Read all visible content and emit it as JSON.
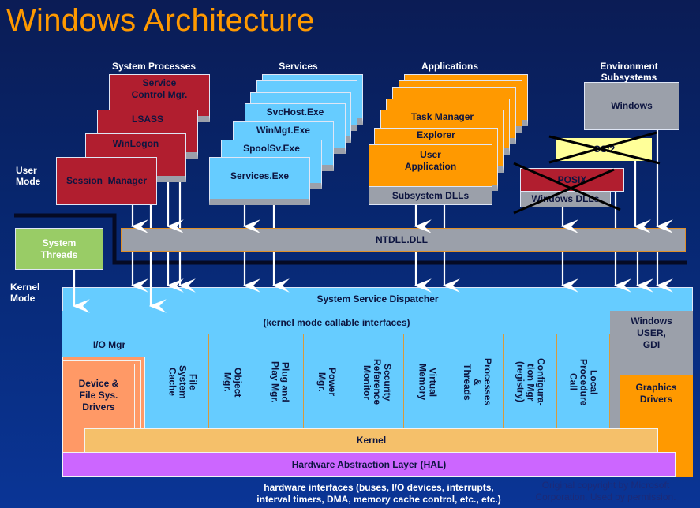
{
  "title": "Windows Architecture",
  "headers": {
    "system_processes": "System Processes",
    "services": "Services",
    "applications": "Applications",
    "environment_subsystems": [
      "Environment",
      "Subsystems"
    ]
  },
  "modes": {
    "user": [
      "User",
      "Mode"
    ],
    "kernel": [
      "Kernel",
      "Mode"
    ]
  },
  "system_processes": [
    "Service\nControl Mgr.",
    "LSASS",
    "WinLogon",
    "Session  Manager"
  ],
  "services": [
    "SvcHost.Exe",
    "WinMgt.Exe",
    "SpoolSv.Exe",
    "Services.Exe"
  ],
  "applications": [
    "Task Manager",
    "Explorer",
    "User\nApplication"
  ],
  "subsystem_dlls": "Subsystem DLLs",
  "environment": {
    "windows": "Windows",
    "os2": "OS/2",
    "posix": "POSIX",
    "windows_dlls": "Windows DLLs",
    "crossed_out": [
      "OS/2",
      "POSIX"
    ]
  },
  "ntdll": "NTDLL.DLL",
  "system_threads": "System\nThreads",
  "kernel": {
    "dispatcher": "System Service Dispatcher",
    "callable": "(kernel mode callable interfaces)",
    "io_mgr": "I/O Mgr",
    "device_drivers": "Device &\nFile Sys.\nDrivers",
    "components": [
      "File\nSystem\nCache",
      "Object\nMgr.",
      "Plug and\nPlay Mgr.",
      "Power\nMgr.",
      "Security\nReference\nMonitor",
      "Virtual\nMemory",
      "Processes\n&\nThreads",
      "Configura-\ntion Mgr\n(registry)",
      "Local\nProcedure\nCall"
    ],
    "win_user_gdi": "Windows\nUSER,\nGDI",
    "graphics_drivers": "Graphics\nDrivers",
    "kernel": "Kernel",
    "hal": "Hardware Abstraction Layer (HAL)"
  },
  "footer": {
    "hardware": "hardware interfaces (buses, I/O devices, interrupts,\ninterval timers, DMA, memory cache control, etc., etc.)",
    "copyright": "Original copyright by Microsoft\nCorporation.  Used by permission."
  },
  "colors": {
    "title": "#ff9900",
    "system_process": "#b11e2f",
    "service": "#66ccff",
    "application": "#ff9900",
    "ntdll": "#9ba0aa",
    "system_threads": "#99cc66",
    "kernel": "#f5c06a",
    "hal": "#cc66ff",
    "drivers": "#ff9966"
  }
}
